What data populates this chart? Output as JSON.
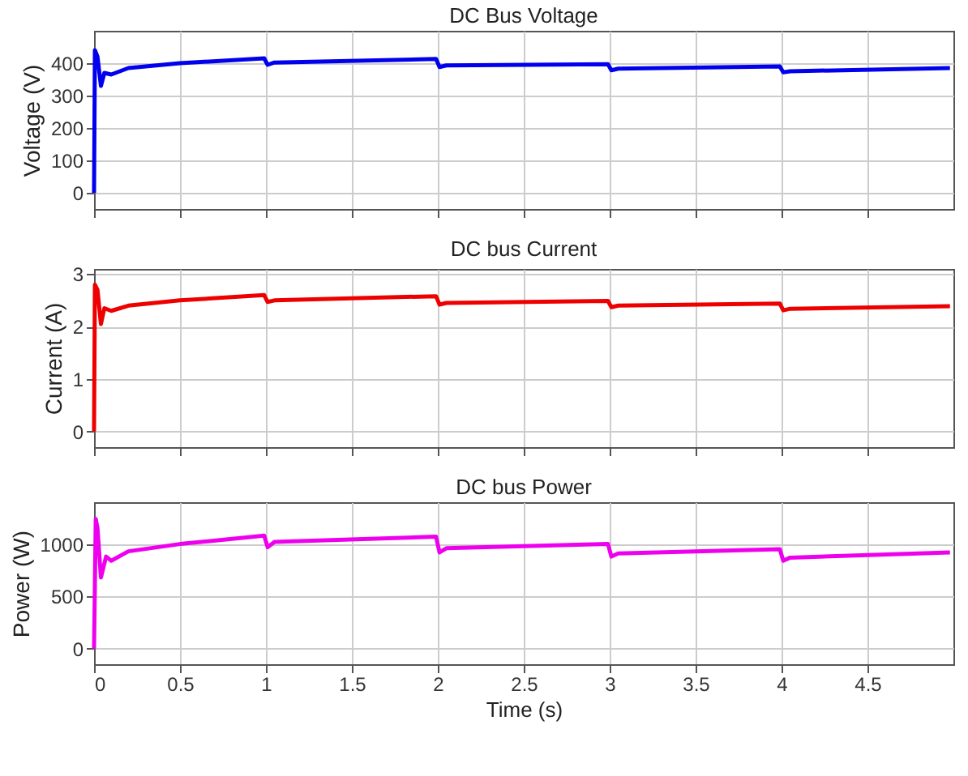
{
  "chart_data": [
    {
      "type": "line",
      "title": "DC Bus Voltage",
      "ylabel": "Voltage (V)",
      "xlim": [
        0,
        5
      ],
      "xticks": [
        0,
        0.5,
        1,
        1.5,
        2,
        2.5,
        3,
        3.5,
        4,
        4.5
      ],
      "ylim": [
        -50,
        500
      ],
      "yticks": [
        0,
        100,
        200,
        300,
        400
      ],
      "grid": true,
      "tick_labels": "y",
      "x": [
        0,
        0.005,
        0.02,
        0.04,
        0.06,
        0.1,
        0.2,
        0.5,
        0.99,
        1.01,
        1.05,
        1.99,
        2.01,
        2.05,
        2.99,
        3.01,
        3.05,
        3.99,
        4.01,
        4.05,
        4.98
      ],
      "series": [
        {
          "color": "#0000ee",
          "values": [
            0,
            440,
            420,
            330,
            370,
            365,
            385,
            400,
            415,
            395,
            402,
            413,
            388,
            393,
            397,
            378,
            383,
            390,
            372,
            375,
            385
          ]
        }
      ]
    },
    {
      "type": "line",
      "title": "DC bus Current",
      "ylabel": "Current (A)",
      "xlim": [
        0,
        5
      ],
      "xticks": [
        0,
        0.5,
        1,
        1.5,
        2,
        2.5,
        3,
        3.5,
        4,
        4.5
      ],
      "ylim": [
        -0.3,
        3.1
      ],
      "yticks": [
        0,
        1,
        2,
        3
      ],
      "grid": true,
      "tick_labels": "y",
      "x": [
        0,
        0.005,
        0.02,
        0.04,
        0.06,
        0.1,
        0.2,
        0.5,
        0.99,
        1.01,
        1.05,
        1.99,
        2.01,
        2.05,
        2.99,
        3.01,
        3.05,
        3.99,
        4.01,
        4.05,
        4.98
      ],
      "series": [
        {
          "color": "#ee0000",
          "values": [
            0,
            2.8,
            2.7,
            2.05,
            2.35,
            2.3,
            2.4,
            2.5,
            2.6,
            2.47,
            2.5,
            2.58,
            2.42,
            2.45,
            2.49,
            2.37,
            2.4,
            2.44,
            2.31,
            2.34,
            2.39
          ]
        }
      ]
    },
    {
      "type": "line",
      "title": "DC bus Power",
      "ylabel": "Power (W)",
      "xlabel": "Time (s)",
      "xlim": [
        0,
        5
      ],
      "xticks": [
        0,
        0.5,
        1,
        1.5,
        2,
        2.5,
        3,
        3.5,
        4,
        4.5
      ],
      "ylim": [
        -150,
        1400
      ],
      "yticks": [
        0,
        500,
        1000
      ],
      "grid": true,
      "x": [
        0,
        0.01,
        0.02,
        0.04,
        0.07,
        0.1,
        0.2,
        0.5,
        0.99,
        1.01,
        1.05,
        1.99,
        2.01,
        2.05,
        2.99,
        3.01,
        3.05,
        3.99,
        4.01,
        4.05,
        4.98
      ],
      "series": [
        {
          "color": "#ee00ee",
          "values": [
            0,
            1240,
            1150,
            680,
            880,
            840,
            930,
            1000,
            1080,
            970,
            1020,
            1070,
            920,
            960,
            1000,
            880,
            910,
            950,
            840,
            870,
            920
          ]
        }
      ]
    }
  ]
}
